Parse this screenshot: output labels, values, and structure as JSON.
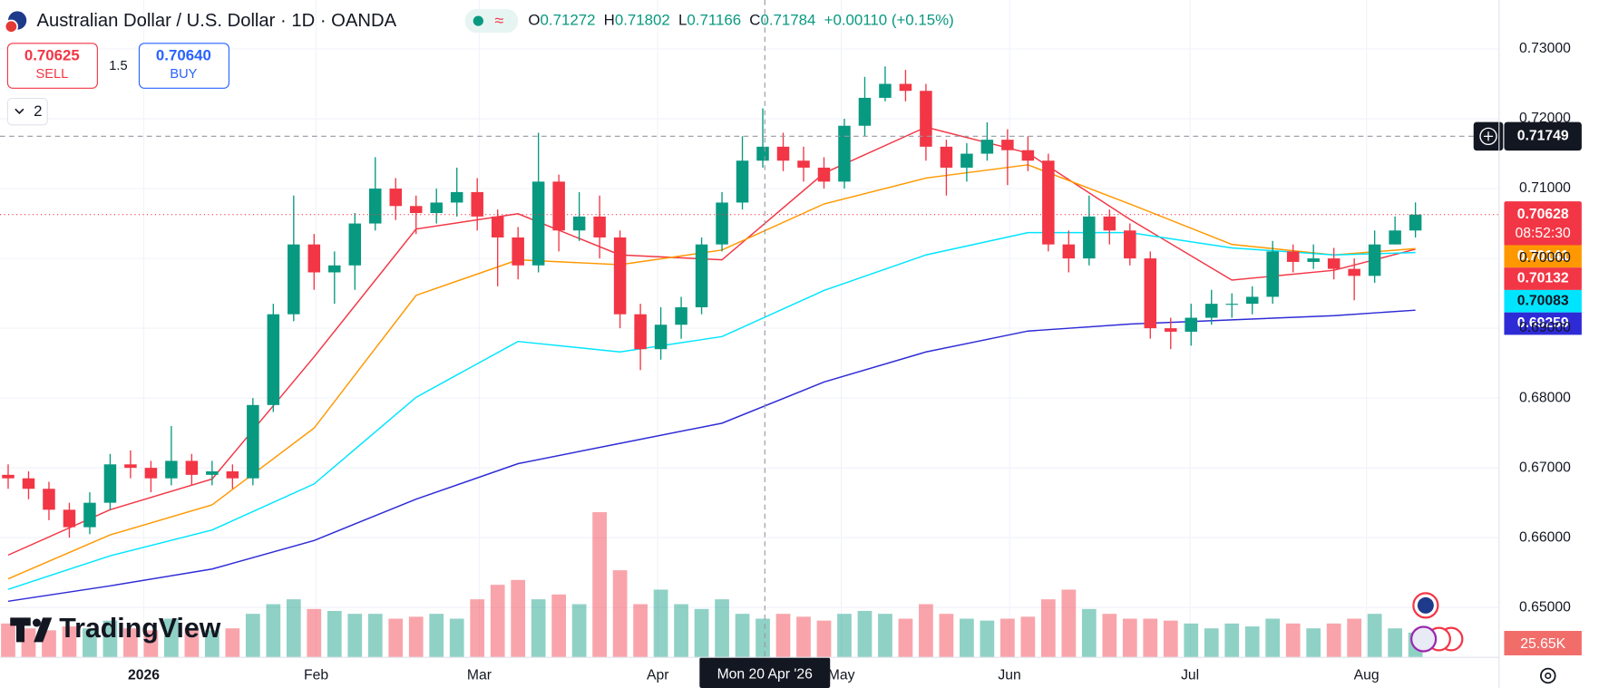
{
  "chart_data": {
    "type": "candlestick",
    "title": "Australian Dollar / U.S. Dollar · 1D · OANDA",
    "ohlc": [
      {
        "label": "O",
        "value": "0.71272"
      },
      {
        "label": "H",
        "value": "0.71802"
      },
      {
        "label": "L",
        "value": "0.71166"
      },
      {
        "label": "C",
        "value": "0.71784"
      }
    ],
    "change": "+0.00110 (+0.15%)",
    "sell": {
      "price": "0.70625",
      "label": "SELL"
    },
    "spread": "1.5",
    "buy": {
      "price": "0.70640",
      "label": "BUY"
    },
    "indicators_count": "2",
    "watermark": "TradingView",
    "up_color": "#089981",
    "down_color": "#f23645",
    "open": [
      0.669,
      0.6685,
      0.667,
      0.664,
      0.6615,
      0.665,
      0.6705,
      0.67,
      0.6685,
      0.671,
      0.669,
      0.6695,
      0.6685,
      0.679,
      0.692,
      0.702,
      0.698,
      0.699,
      0.705,
      0.71,
      0.7075,
      0.7065,
      0.708,
      0.7095,
      0.706,
      0.703,
      0.699,
      0.711,
      0.704,
      0.706,
      0.703,
      0.692,
      0.687,
      0.6905,
      0.693,
      0.702,
      0.708,
      0.714,
      0.716,
      0.714,
      0.713,
      0.711,
      0.719,
      0.723,
      0.725,
      0.724,
      0.716,
      0.713,
      0.715,
      0.717,
      0.7155,
      0.714,
      0.702,
      0.7,
      0.706,
      0.704,
      0.7,
      0.69,
      0.6895,
      0.6915,
      0.6935,
      0.6935,
      0.6945,
      0.701,
      0.6995,
      0.7,
      0.6985,
      0.6975,
      0.702,
      0.704
    ],
    "high": [
      0.6705,
      0.6695,
      0.668,
      0.665,
      0.6665,
      0.672,
      0.6725,
      0.671,
      0.676,
      0.672,
      0.671,
      0.6705,
      0.68,
      0.6935,
      0.709,
      0.7035,
      0.701,
      0.7065,
      0.7145,
      0.7115,
      0.709,
      0.71,
      0.713,
      0.7115,
      0.707,
      0.7045,
      0.718,
      0.712,
      0.7095,
      0.709,
      0.704,
      0.6935,
      0.693,
      0.6945,
      0.703,
      0.7095,
      0.7175,
      0.7215,
      0.718,
      0.716,
      0.7145,
      0.72,
      0.726,
      0.7275,
      0.727,
      0.725,
      0.717,
      0.7165,
      0.7195,
      0.7185,
      0.7175,
      0.715,
      0.704,
      0.709,
      0.707,
      0.705,
      0.701,
      0.6915,
      0.6935,
      0.6955,
      0.695,
      0.696,
      0.7025,
      0.702,
      0.702,
      0.7015,
      0.7,
      0.704,
      0.706,
      0.70802
    ],
    "low": [
      0.667,
      0.6655,
      0.6625,
      0.66,
      0.6605,
      0.664,
      0.6685,
      0.6665,
      0.6675,
      0.6675,
      0.6675,
      0.667,
      0.6675,
      0.678,
      0.691,
      0.6955,
      0.6935,
      0.6955,
      0.704,
      0.7055,
      0.7035,
      0.705,
      0.706,
      0.704,
      0.696,
      0.697,
      0.698,
      0.701,
      0.7025,
      0.7,
      0.69,
      0.684,
      0.6855,
      0.6885,
      0.692,
      0.701,
      0.707,
      0.713,
      0.7125,
      0.711,
      0.71,
      0.71,
      0.7175,
      0.7225,
      0.7225,
      0.714,
      0.709,
      0.711,
      0.714,
      0.7105,
      0.7125,
      0.701,
      0.698,
      0.699,
      0.702,
      0.699,
      0.6885,
      0.687,
      0.6875,
      0.6905,
      0.6915,
      0.692,
      0.6935,
      0.698,
      0.6985,
      0.697,
      0.694,
      0.6965,
      0.702,
      0.703
    ],
    "close": [
      0.6685,
      0.667,
      0.664,
      0.6615,
      0.665,
      0.6705,
      0.67,
      0.6685,
      0.671,
      0.669,
      0.6695,
      0.6685,
      0.679,
      0.692,
      0.702,
      0.698,
      0.699,
      0.705,
      0.71,
      0.7075,
      0.7065,
      0.708,
      0.7095,
      0.706,
      0.703,
      0.699,
      0.711,
      0.704,
      0.706,
      0.703,
      0.692,
      0.687,
      0.6905,
      0.693,
      0.702,
      0.708,
      0.714,
      0.716,
      0.714,
      0.713,
      0.711,
      0.719,
      0.723,
      0.725,
      0.724,
      0.716,
      0.713,
      0.715,
      0.717,
      0.7155,
      0.714,
      0.702,
      0.7,
      0.706,
      0.704,
      0.7,
      0.69,
      0.6895,
      0.6915,
      0.6935,
      0.6935,
      0.6945,
      0.701,
      0.6995,
      0.7,
      0.6985,
      0.6975,
      0.702,
      0.704,
      0.70628
    ],
    "series": [
      {
        "color": "#f23645",
        "text_color": "#ffffff",
        "x": [
          0,
          5,
          10,
          15,
          20,
          25,
          30,
          35,
          40,
          45,
          50,
          55,
          60,
          65,
          69
        ],
        "values": [
          0.6575,
          0.664,
          0.6684,
          0.6859,
          0.7042,
          0.7064,
          0.7005,
          0.6998,
          0.7122,
          0.7188,
          0.7151,
          0.7056,
          0.6969,
          0.6983,
          0.70132
        ]
      },
      {
        "color": "#ff9800",
        "text_color": "#ffffff",
        "x": [
          0,
          5,
          10,
          15,
          20,
          25,
          30,
          35,
          40,
          45,
          50,
          55,
          60,
          65,
          69
        ],
        "values": [
          0.6541,
          0.6604,
          0.6647,
          0.6757,
          0.6947,
          0.6998,
          0.6991,
          0.7012,
          0.7078,
          0.7115,
          0.7134,
          0.7078,
          0.702,
          0.7005,
          0.70141
        ]
      },
      {
        "color": "#00e5ff",
        "text_color": "#131722",
        "x": [
          0,
          5,
          10,
          15,
          20,
          25,
          30,
          35,
          40,
          45,
          50,
          55,
          60,
          65,
          69
        ],
        "values": [
          0.6526,
          0.6574,
          0.6611,
          0.6677,
          0.6801,
          0.6881,
          0.6866,
          0.6888,
          0.6954,
          0.7005,
          0.7037,
          0.7037,
          0.7015,
          0.7005,
          0.70083
        ]
      },
      {
        "color": "#2e2bd6",
        "text_color": "#ffffff",
        "x": [
          0,
          5,
          10,
          15,
          20,
          25,
          30,
          35,
          40,
          45,
          50,
          55,
          60,
          65,
          69
        ],
        "values": [
          0.6509,
          0.6531,
          0.6555,
          0.6596,
          0.6655,
          0.6706,
          0.6735,
          0.6764,
          0.6823,
          0.6866,
          0.6896,
          0.6906,
          0.6912,
          0.6918,
          0.69259
        ]
      }
    ],
    "volume": {
      "values": [
        35,
        30,
        28,
        32,
        30,
        38,
        30,
        28,
        40,
        30,
        28,
        30,
        45,
        55,
        60,
        50,
        48,
        45,
        45,
        40,
        42,
        45,
        40,
        60,
        75,
        80,
        60,
        65,
        55,
        150,
        90,
        55,
        70,
        55,
        50,
        60,
        45,
        40,
        45,
        42,
        38,
        45,
        48,
        45,
        40,
        55,
        45,
        40,
        38,
        40,
        42,
        60,
        70,
        50,
        45,
        40,
        40,
        38,
        35,
        30,
        35,
        32,
        40,
        35,
        30,
        35,
        40,
        45,
        30,
        25.65
      ],
      "label": "25.65K",
      "vlim": [
        0,
        180
      ]
    },
    "last_price": 0.70628,
    "countdown": "08:52:30",
    "crosshair": {
      "y": 0.71749,
      "x": 37.1,
      "x_label": "Mon 20 Apr '26"
    },
    "ylim": [
      0.64285,
      0.73701
    ],
    "yticks": [
      {
        "value": 0.65,
        "label": "0.65000"
      },
      {
        "value": 0.66,
        "label": "0.66000"
      },
      {
        "value": 0.67,
        "label": "0.67000"
      },
      {
        "value": 0.68,
        "label": "0.68000"
      },
      {
        "value": 0.69,
        "label": "0.69000"
      },
      {
        "value": 0.7,
        "label": "0.70000"
      },
      {
        "value": 0.71,
        "label": "0.71000"
      },
      {
        "value": 0.72,
        "label": "0.72000"
      },
      {
        "value": 0.73,
        "label": "0.73000"
      }
    ],
    "xlim": [
      -0.4,
      73.1
    ],
    "xticks": [
      {
        "value": 6.65,
        "label": "2026"
      },
      {
        "value": 15.1,
        "label": "Feb"
      },
      {
        "value": 23.1,
        "label": "Mar"
      },
      {
        "value": 31.85,
        "label": "Apr"
      },
      {
        "value": 40.85,
        "label": "May"
      },
      {
        "value": 49.1,
        "label": "Jun"
      },
      {
        "value": 57.95,
        "label": "Jul"
      },
      {
        "value": 66.6,
        "label": "Aug"
      }
    ],
    "grid": true
  }
}
